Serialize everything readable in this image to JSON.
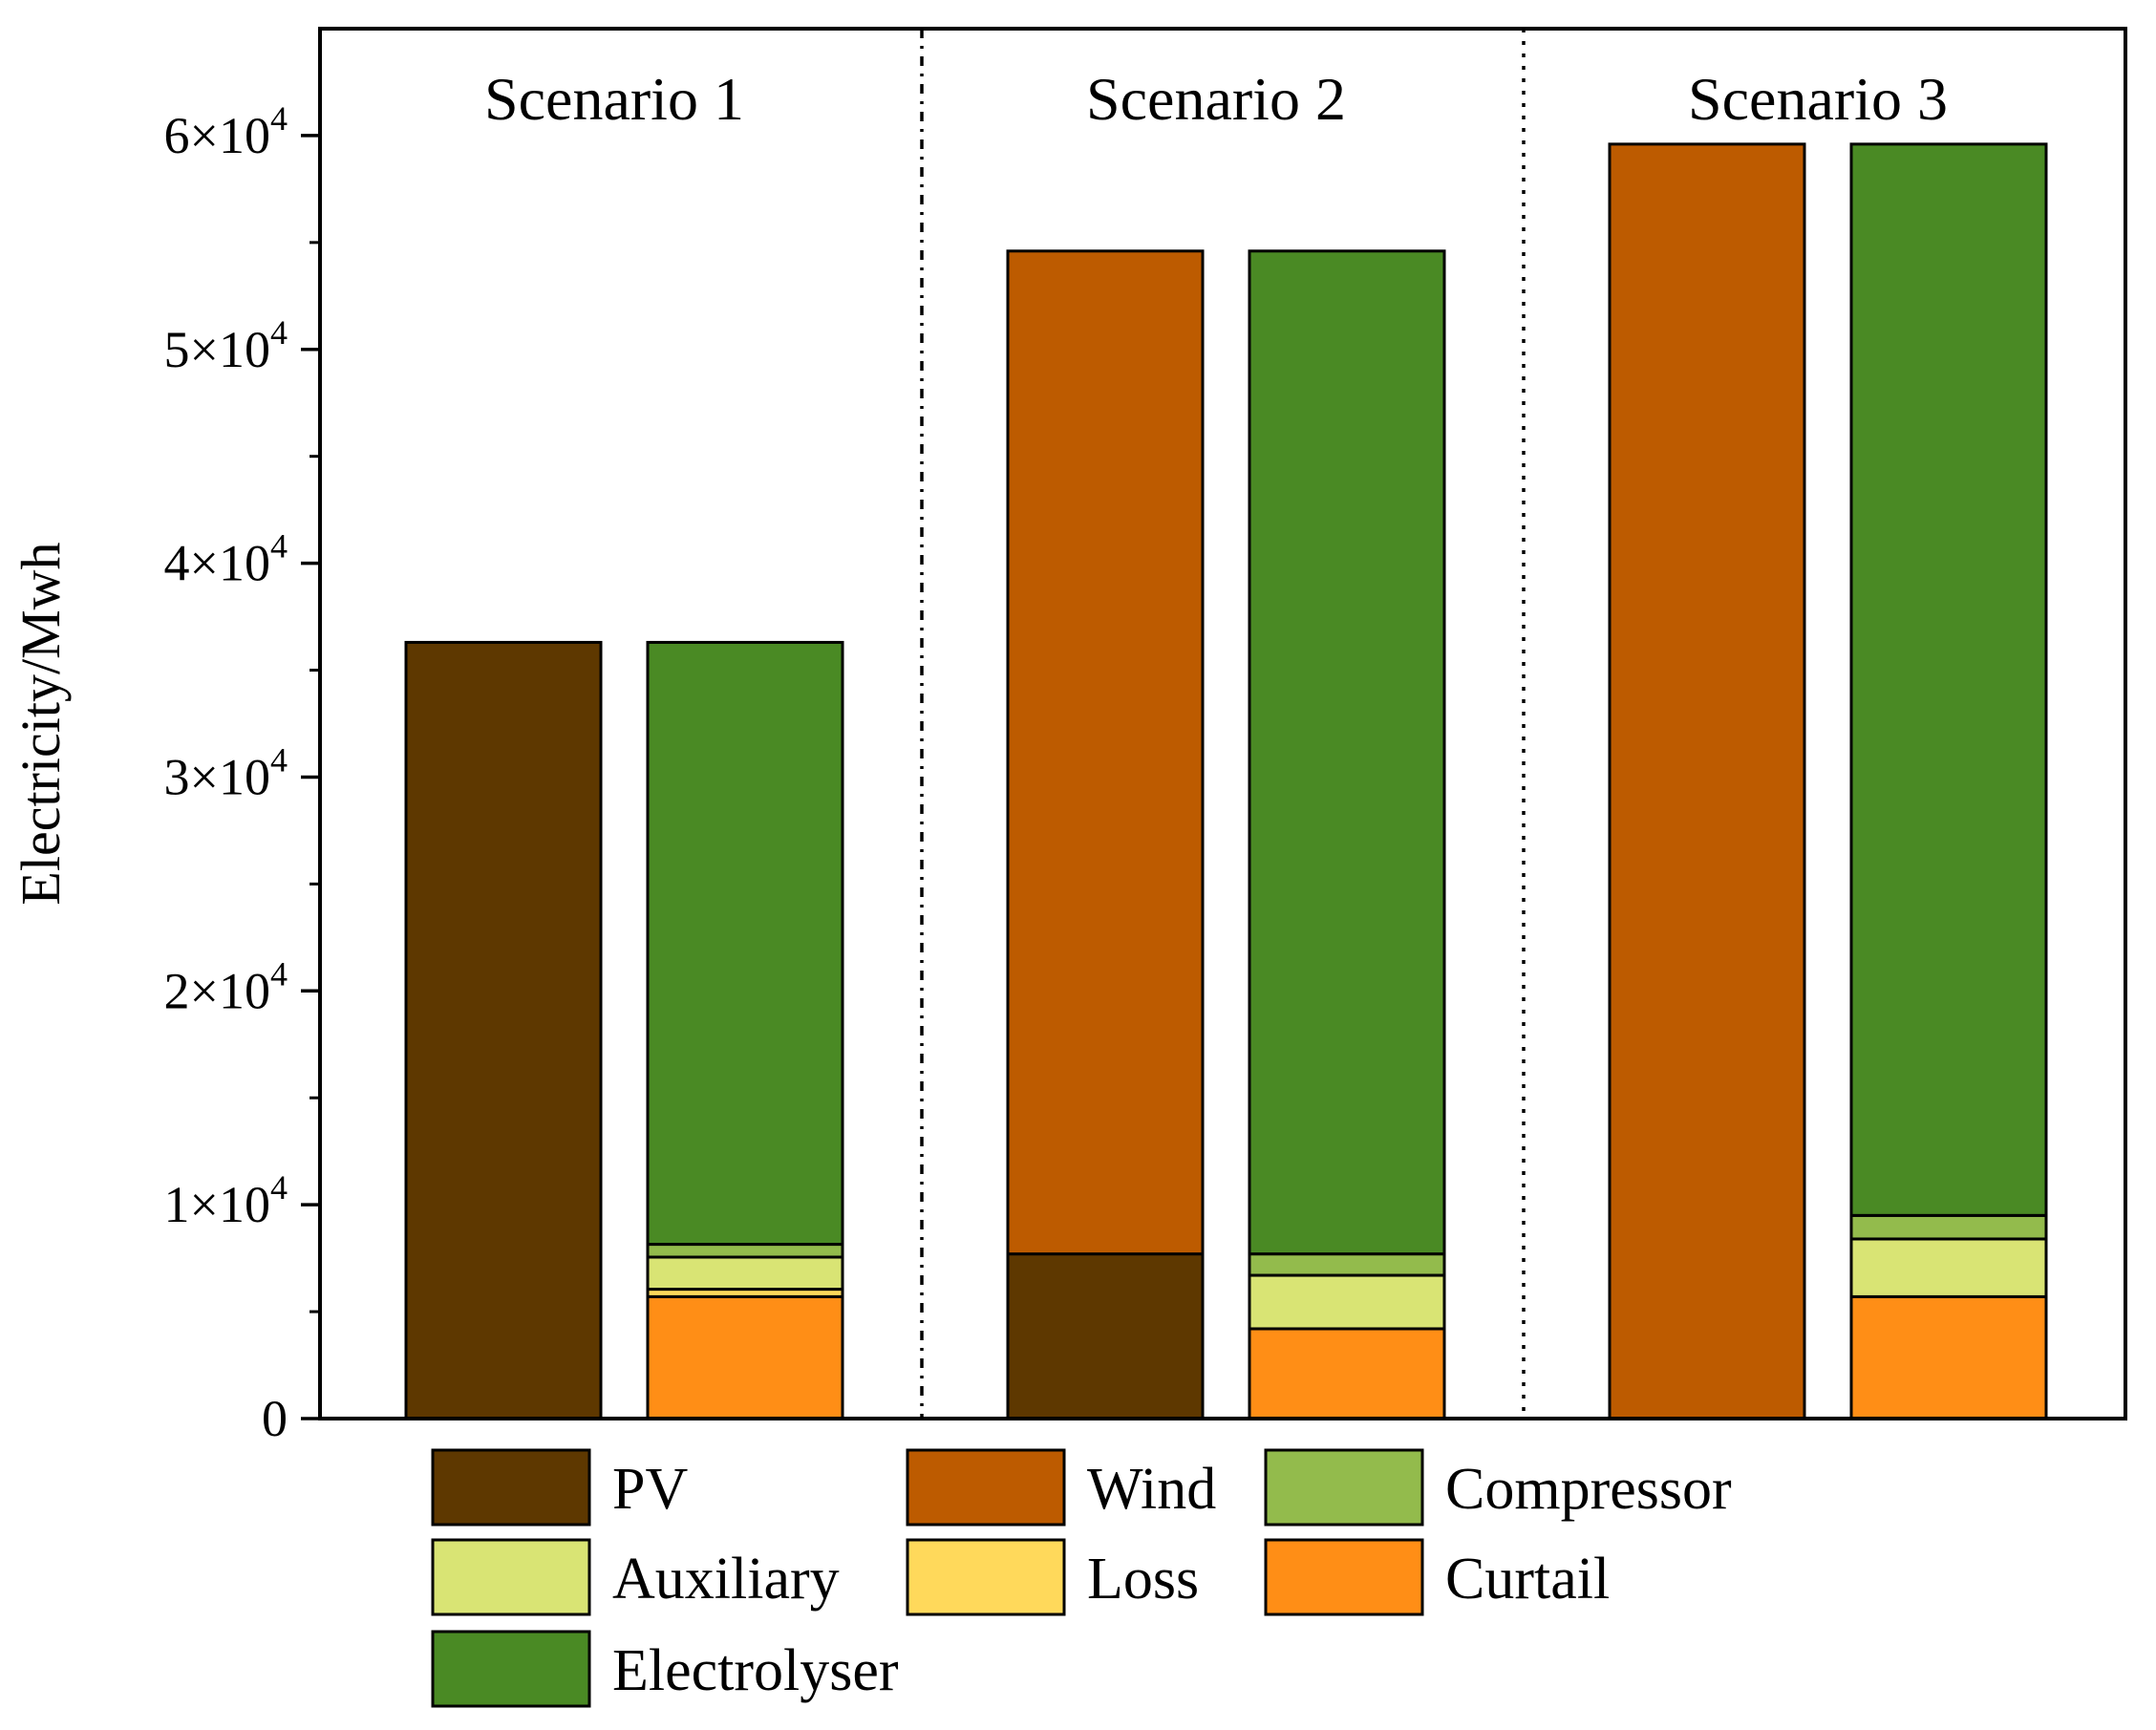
{
  "chart_data": {
    "type": "bar",
    "stacked": true,
    "ylabel": "Electricity/Mwh",
    "ylim": [
      0,
      65000
    ],
    "y_ticks": [
      {
        "value": 0,
        "text": "0",
        "exp": ""
      },
      {
        "value": 10000,
        "text": "1×10",
        "exp": "4"
      },
      {
        "value": 20000,
        "text": "2×10",
        "exp": "4"
      },
      {
        "value": 30000,
        "text": "3×10",
        "exp": "4"
      },
      {
        "value": 40000,
        "text": "4×10",
        "exp": "4"
      },
      {
        "value": 50000,
        "text": "5×10",
        "exp": "4"
      },
      {
        "value": 60000,
        "text": "6×10",
        "exp": "4"
      }
    ],
    "scenarios": [
      {
        "label": "Scenario 1",
        "supply": [
          {
            "name": "PV",
            "value": 36300
          },
          {
            "name": "Wind",
            "value": 0
          }
        ],
        "consumption": [
          {
            "name": "Curtail",
            "value": 5700
          },
          {
            "name": "Loss",
            "value": 350
          },
          {
            "name": "Auxiliary",
            "value": 1500
          },
          {
            "name": "Compressor",
            "value": 600
          },
          {
            "name": "Electrolyser",
            "value": 28150
          }
        ]
      },
      {
        "label": "Scenario 2",
        "supply": [
          {
            "name": "PV",
            "value": 7700
          },
          {
            "name": "Wind",
            "value": 46900
          }
        ],
        "consumption": [
          {
            "name": "Curtail",
            "value": 4200
          },
          {
            "name": "Loss",
            "value": 0
          },
          {
            "name": "Auxiliary",
            "value": 2500
          },
          {
            "name": "Compressor",
            "value": 1000
          },
          {
            "name": "Electrolyser",
            "value": 46900
          }
        ]
      },
      {
        "label": "Scenario 3",
        "supply": [
          {
            "name": "PV",
            "value": 0
          },
          {
            "name": "Wind",
            "value": 59600
          }
        ],
        "consumption": [
          {
            "name": "Curtail",
            "value": 5700
          },
          {
            "name": "Loss",
            "value": 0
          },
          {
            "name": "Auxiliary",
            "value": 2700
          },
          {
            "name": "Compressor",
            "value": 1100
          },
          {
            "name": "Electrolyser",
            "value": 50100
          }
        ]
      }
    ],
    "legend": [
      {
        "name": "PV",
        "color": "#5e3800"
      },
      {
        "name": "Wind",
        "color": "#bd5b00"
      },
      {
        "name": "Compressor",
        "color": "#93bb4c"
      },
      {
        "name": "Auxiliary",
        "color": "#d9e474"
      },
      {
        "name": "Loss",
        "color": "#ffd95b"
      },
      {
        "name": "Curtail",
        "color": "#ff8e16"
      },
      {
        "name": "Electrolyser",
        "color": "#4a8a24"
      }
    ]
  }
}
